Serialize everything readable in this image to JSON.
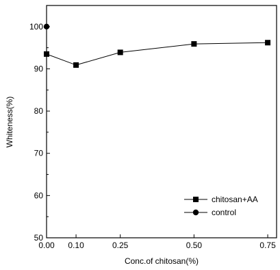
{
  "chart_data": {
    "type": "line",
    "xlabel": "Conc.of chitosan(%)",
    "ylabel": "Whiteness(%)",
    "xlim": [
      0,
      0.78
    ],
    "ylim": [
      50,
      105
    ],
    "x_ticks": [
      0.0,
      0.1,
      0.25,
      0.5,
      0.75
    ],
    "x_tick_labels": [
      "0.00",
      "0.10",
      "0.25",
      "0.50",
      "0.75"
    ],
    "y_ticks": [
      50,
      60,
      70,
      80,
      90,
      100
    ],
    "y_tick_labels": [
      "50",
      "60",
      "70",
      "80",
      "90",
      "100"
    ],
    "grid": false,
    "legend_position": "bottom-right",
    "series": [
      {
        "name": "chitosan+AA",
        "marker": "square",
        "x": [
          0.0,
          0.1,
          0.25,
          0.5,
          0.75
        ],
        "y": [
          93.5,
          90.9,
          93.9,
          95.9,
          96.2
        ],
        "color": "#000000"
      },
      {
        "name": "control",
        "marker": "circle",
        "x": [
          0.0
        ],
        "y": [
          100.0
        ],
        "color": "#000000"
      }
    ]
  }
}
